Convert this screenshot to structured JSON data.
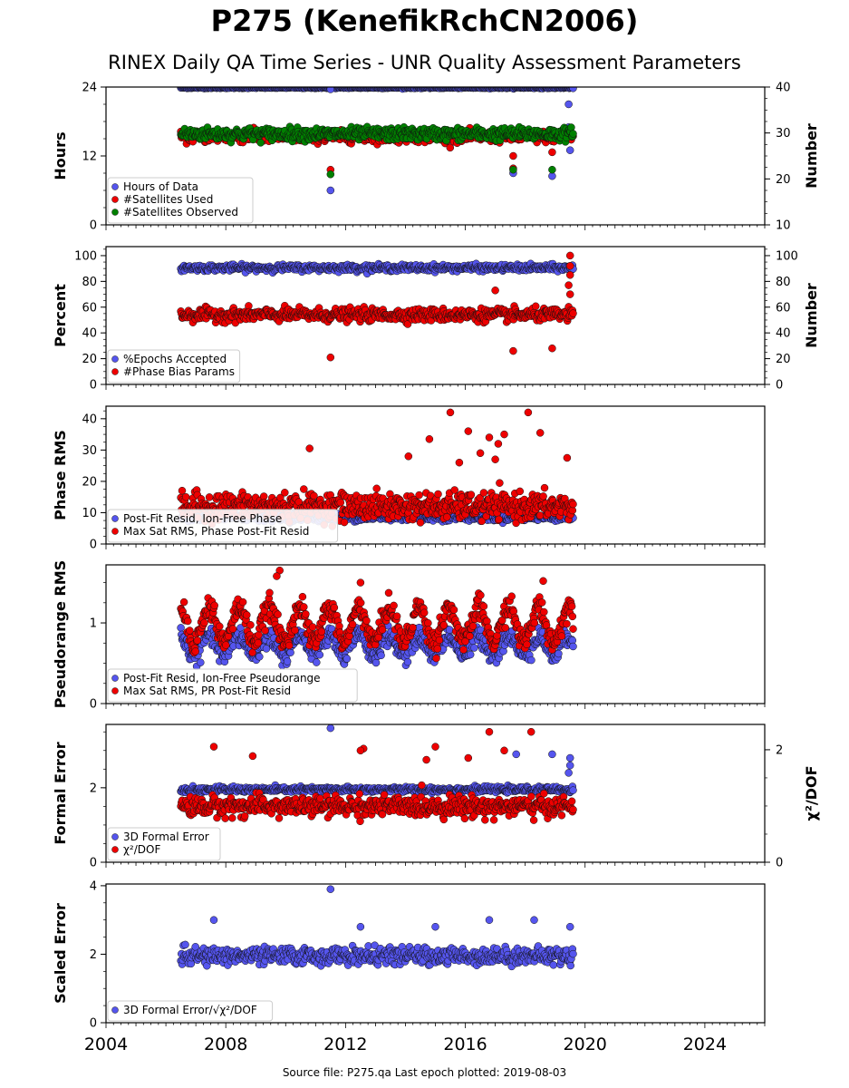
{
  "title": "P275 (KenefikRchCN2006)",
  "subtitle": "RINEX Daily QA Time Series - UNR Quality Assessment Parameters",
  "footer": "Source file: P275.qa Last epoch plotted: 2019-08-03",
  "colors": {
    "blue": "#5555ee",
    "red": "#ee0000",
    "green": "#008000",
    "navy": "#1a1a5e"
  },
  "chart_data": [
    {
      "type": "scatter",
      "ylabel": "Hours",
      "ylabel_right": "Number",
      "xlim": [
        2004,
        2026
      ],
      "ylim": [
        0,
        24
      ],
      "yticks": [
        0,
        12,
        24
      ],
      "ylim_right": [
        10,
        40
      ],
      "yticks_right": [
        10,
        20,
        30,
        40
      ],
      "legend": "lower-left",
      "series": [
        {
          "name": "Hours of Data",
          "color": "#5555ee",
          "axis": "left",
          "x_range": [
            2006.5,
            2019.6
          ],
          "level": 23.9,
          "noise": 0.1,
          "outliers": [
            [
              2011.5,
              23.6
            ],
            [
              2011.5,
              6.0
            ],
            [
              2017.6,
              9.0
            ],
            [
              2018.9,
              8.5
            ],
            [
              2019.45,
              21.0
            ],
            [
              2019.45,
              17.0
            ],
            [
              2019.5,
              13.0
            ]
          ]
        },
        {
          "name": "#Satellites Used",
          "color": "#ee0000",
          "axis": "right",
          "x_range": [
            2006.5,
            2019.6
          ],
          "level": 29.2,
          "noise": 1.0,
          "outliers": [
            [
              2011.5,
              22.0
            ],
            [
              2017.6,
              25.0
            ],
            [
              2018.9,
              25.8
            ],
            [
              2017.6,
              22.3
            ],
            [
              2009.5,
              30.0
            ]
          ]
        },
        {
          "name": "#Satellites Observed",
          "color": "#008000",
          "axis": "right",
          "x_range": [
            2006.5,
            2019.6
          ],
          "level": 29.8,
          "noise": 1.1,
          "outliers": [
            [
              2011.5,
              21.0
            ],
            [
              2017.6,
              22.0
            ],
            [
              2018.9,
              22.0
            ]
          ]
        }
      ]
    },
    {
      "type": "scatter",
      "ylabel": "Percent",
      "ylabel_right": "Number",
      "xlim": [
        2004,
        2026
      ],
      "ylim": [
        0,
        107
      ],
      "yticks": [
        0,
        20,
        40,
        60,
        80,
        100
      ],
      "ylim_right": [
        0,
        107
      ],
      "yticks_right": [
        0,
        20,
        40,
        60,
        80,
        100
      ],
      "legend": "lower-left",
      "series": [
        {
          "name": "%Epochs Accepted",
          "color": "#5555ee",
          "axis": "left",
          "x_range": [
            2006.5,
            2019.6
          ],
          "level": 90.5,
          "noise": 2.0,
          "outliers": []
        },
        {
          "name": "#Phase Bias Params",
          "color": "#ee0000",
          "axis": "right",
          "x_range": [
            2006.5,
            2019.6
          ],
          "level": 54.0,
          "noise": 4.0,
          "outliers": [
            [
              2011.5,
              21.0
            ],
            [
              2017.6,
              26.0
            ],
            [
              2018.9,
              28.0
            ],
            [
              2017.0,
              73.0
            ],
            [
              2019.5,
              100.0
            ],
            [
              2019.5,
              92.0
            ],
            [
              2019.5,
              85.0
            ],
            [
              2019.45,
              77.0
            ],
            [
              2019.5,
              70.0
            ]
          ]
        }
      ]
    },
    {
      "type": "scatter",
      "ylabel": "Phase RMS",
      "xlim": [
        2004,
        2026
      ],
      "ylim": [
        0,
        44
      ],
      "yticks": [
        0,
        10,
        20,
        30,
        40
      ],
      "legend": "lower-left",
      "series": [
        {
          "name": "Post-Fit Resid, Ion-Free Phase",
          "color": "#5555ee",
          "axis": "left",
          "x_range": [
            2006.5,
            2019.6
          ],
          "level": 8.5,
          "noise": 0.9,
          "outliers": []
        },
        {
          "name": "Max Sat RMS, Phase Post-Fit Resid",
          "color": "#ee0000",
          "axis": "left",
          "x_range": [
            2006.5,
            2019.6
          ],
          "level": 12.0,
          "noise": 3.5,
          "outliers": [
            [
              2015.5,
              42.0
            ],
            [
              2018.1,
              42.0
            ],
            [
              2016.1,
              36.0
            ],
            [
              2018.5,
              35.5
            ],
            [
              2016.8,
              34.0
            ],
            [
              2017.3,
              35.0
            ],
            [
              2017.1,
              32.0
            ],
            [
              2014.8,
              33.5
            ],
            [
              2010.8,
              30.5
            ],
            [
              2019.4,
              27.5
            ],
            [
              2016.5,
              29.0
            ],
            [
              2017.0,
              27.0
            ],
            [
              2015.8,
              26.0
            ],
            [
              2014.1,
              28.0
            ]
          ]
        }
      ]
    },
    {
      "type": "scatter",
      "ylabel": "Pseudorange RMS",
      "xlim": [
        2004,
        2026
      ],
      "ylim": [
        0,
        1.72
      ],
      "yticks": [
        0,
        1
      ],
      "legend": "lower-left",
      "series": [
        {
          "name": "Post-Fit Resid, Ion-Free Pseudorange",
          "color": "#5555ee",
          "axis": "left",
          "x_range": [
            2006.5,
            2019.6
          ],
          "level": 0.72,
          "noise": 0.1,
          "seasonal": 0.12,
          "outliers": []
        },
        {
          "name": "Max Sat RMS, PR Post-Fit Resid",
          "color": "#ee0000",
          "axis": "left",
          "x_range": [
            2006.5,
            2019.6
          ],
          "level": 0.98,
          "noise": 0.12,
          "seasonal": 0.22,
          "outliers": [
            [
              2009.8,
              1.65
            ],
            [
              2009.7,
              1.58
            ],
            [
              2018.6,
              1.52
            ],
            [
              2012.5,
              1.5
            ]
          ]
        }
      ]
    },
    {
      "type": "scatter",
      "ylabel": "Formal Error",
      "ylabel_right": "χ²/DOF",
      "xlim": [
        2004,
        2026
      ],
      "ylim": [
        0,
        3.7
      ],
      "yticks": [
        0,
        2
      ],
      "ylim_right": [
        0,
        2.45
      ],
      "yticks_right": [
        0,
        2
      ],
      "legend": "lower-left",
      "series": [
        {
          "name": "3D Formal Error",
          "color": "#5555ee",
          "axis": "left",
          "x_range": [
            2006.5,
            2019.6
          ],
          "level": 1.95,
          "noise": 0.06,
          "outliers": [
            [
              2011.5,
              3.6
            ],
            [
              2017.7,
              2.9
            ],
            [
              2018.9,
              2.9
            ],
            [
              2019.5,
              2.8
            ],
            [
              2019.5,
              2.6
            ],
            [
              2019.45,
              2.4
            ]
          ]
        },
        {
          "name": "χ²/DOF",
          "color": "#ee0000",
          "axis": "left",
          "x_range": [
            2006.5,
            2019.6
          ],
          "level": 1.5,
          "noise": 0.22,
          "outliers": [
            [
              2016.8,
              3.5
            ],
            [
              2018.2,
              3.5
            ],
            [
              2007.6,
              3.1
            ],
            [
              2012.6,
              3.05
            ],
            [
              2012.5,
              3.0
            ],
            [
              2015.0,
              3.1
            ],
            [
              2017.3,
              3.0
            ],
            [
              2008.9,
              2.85
            ],
            [
              2016.1,
              2.8
            ],
            [
              2014.7,
              2.75
            ]
          ]
        }
      ]
    },
    {
      "type": "scatter",
      "ylabel": "Scaled Error",
      "xlim": [
        2004,
        2026
      ],
      "ylim": [
        0,
        4.05
      ],
      "yticks": [
        0,
        2,
        4
      ],
      "xticks": [
        2004,
        2008,
        2012,
        2016,
        2020,
        2024
      ],
      "legend": "lower-left",
      "series": [
        {
          "name": "3D Formal Error/√χ²/DOF",
          "color": "#5555ee",
          "axis": "left",
          "x_range": [
            2006.5,
            2019.6
          ],
          "level": 1.95,
          "noise": 0.2,
          "outliers": [
            [
              2011.5,
              3.9
            ],
            [
              2007.6,
              3.0
            ],
            [
              2016.8,
              3.0
            ],
            [
              2018.3,
              3.0
            ],
            [
              2019.5,
              2.8
            ],
            [
              2012.5,
              2.8
            ],
            [
              2015.0,
              2.8
            ]
          ]
        }
      ]
    }
  ]
}
